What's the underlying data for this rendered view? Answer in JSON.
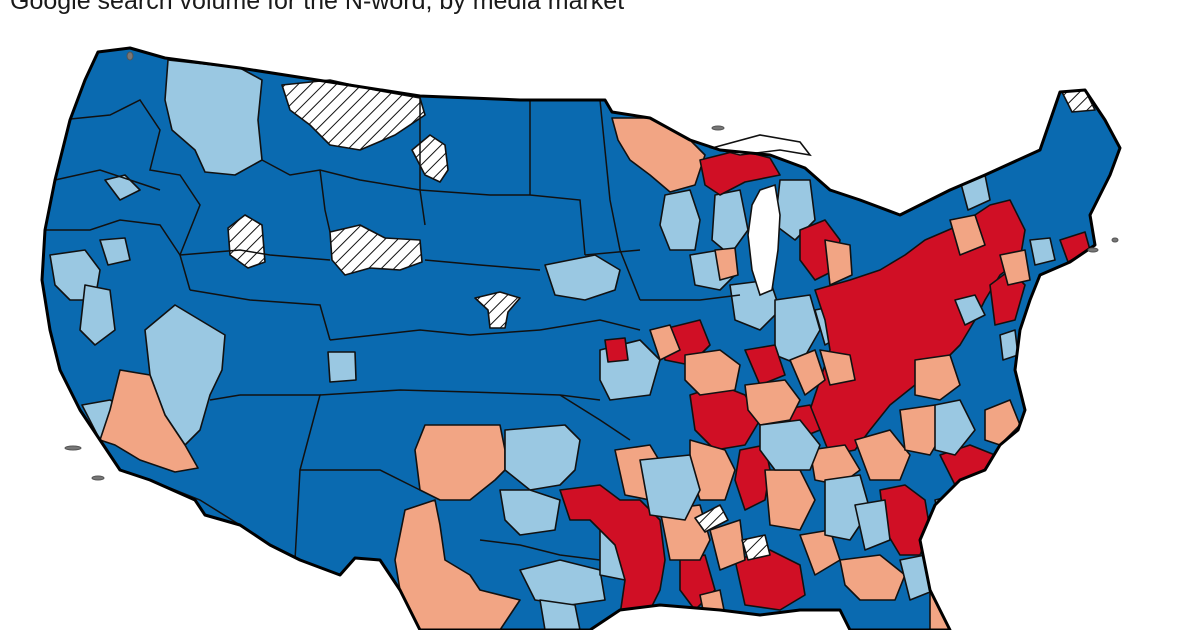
{
  "title": "Google search volume for the N-word, by media market",
  "colors": {
    "dark_blue": "#0a6ab0",
    "light_blue": "#9ac8e2",
    "salmon": "#f2a584",
    "red": "#d00f25",
    "no_data_hatch": "#111111"
  }
}
